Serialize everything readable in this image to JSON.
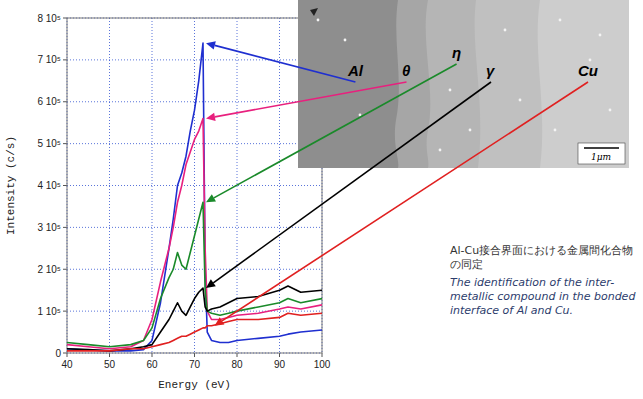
{
  "chart_data": {
    "type": "line",
    "x_label": "Energy (eV)",
    "y_label": "Intensity (c/s)",
    "annotations": [
      "Al-Cu接合界面における金属間化合物の同定",
      "The identification of the inter-metallic compound in the bonded interface of Al and Cu."
    ],
    "scale_bar": "1μm",
    "xlim": [
      40,
      100
    ],
    "xticks": [
      40,
      50,
      60,
      70,
      80,
      90,
      100
    ],
    "ylim": [
      0,
      800000
    ],
    "yticks": [
      0,
      {
        "value": 100000,
        "label": "1 10⁵"
      },
      {
        "value": 200000,
        "label": "2 10⁵"
      },
      {
        "value": 300000,
        "label": "3 10⁵"
      },
      {
        "value": 400000,
        "label": "4 10⁵"
      },
      {
        "value": 500000,
        "label": "5 10⁵"
      },
      {
        "value": 600000,
        "label": "6 10⁵"
      },
      {
        "value": 700000,
        "label": "7 10⁵"
      },
      {
        "value": 800000,
        "label": "8 10⁵"
      }
    ],
    "grid": true,
    "x": [
      40,
      45,
      50,
      55,
      58,
      60,
      62,
      64,
      65,
      66,
      67,
      68,
      69,
      70,
      71,
      72,
      72.5,
      73,
      74,
      76,
      78,
      80,
      85,
      90,
      92,
      95,
      100
    ],
    "series": [
      {
        "name": "Al",
        "color": "#1f2fd0",
        "values": [
          10000,
          7000,
          5000,
          5000,
          8000,
          30000,
          120000,
          250000,
          320000,
          400000,
          430000,
          470000,
          530000,
          580000,
          650000,
          740000,
          200000,
          50000,
          30000,
          25000,
          25000,
          30000,
          35000,
          40000,
          45000,
          50000,
          55000
        ]
      },
      {
        "name": "θ",
        "color": "#e8207e",
        "values": [
          20000,
          15000,
          10000,
          15000,
          30000,
          80000,
          170000,
          250000,
          300000,
          360000,
          400000,
          450000,
          480000,
          510000,
          530000,
          560000,
          250000,
          100000,
          80000,
          80000,
          85000,
          90000,
          95000,
          105000,
          110000,
          105000,
          115000
        ]
      },
      {
        "name": "η",
        "color": "#1a8a2a",
        "values": [
          25000,
          20000,
          15000,
          20000,
          30000,
          60000,
          130000,
          180000,
          200000,
          240000,
          210000,
          200000,
          240000,
          280000,
          320000,
          360000,
          150000,
          100000,
          95000,
          90000,
          95000,
          100000,
          110000,
          120000,
          130000,
          120000,
          130000
        ]
      },
      {
        "name": "γ",
        "color": "#000000",
        "values": [
          10000,
          8000,
          5000,
          10000,
          15000,
          20000,
          50000,
          80000,
          100000,
          120000,
          100000,
          90000,
          110000,
          130000,
          145000,
          155000,
          110000,
          100000,
          105000,
          110000,
          120000,
          130000,
          135000,
          150000,
          160000,
          145000,
          150000
        ]
      },
      {
        "name": "Cu",
        "color": "#e02020",
        "values": [
          5000,
          5000,
          5000,
          10000,
          10000,
          15000,
          20000,
          25000,
          30000,
          35000,
          40000,
          40000,
          45000,
          50000,
          55000,
          60000,
          60000,
          65000,
          65000,
          70000,
          75000,
          80000,
          80000,
          85000,
          95000,
          90000,
          95000
        ]
      }
    ]
  }
}
